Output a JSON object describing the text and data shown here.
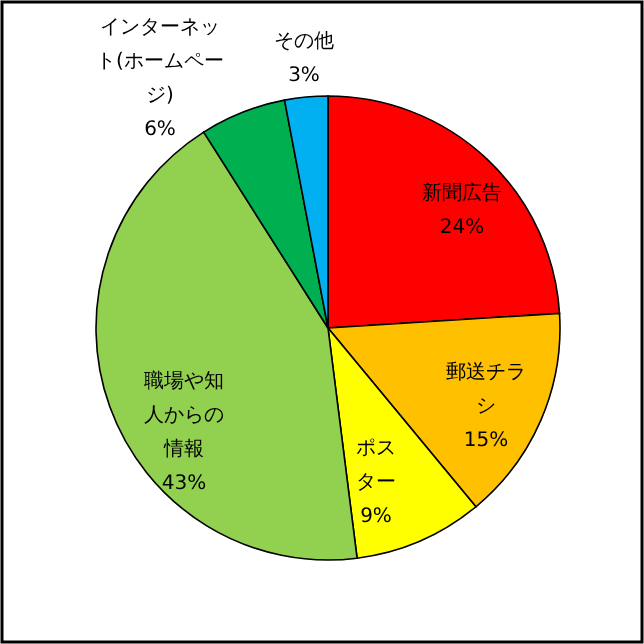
{
  "chart_data": {
    "type": "pie",
    "categories": [
      "新聞広告",
      "郵送チラシ",
      "ポスター",
      "職場や知人からの情報",
      "インターネット(ホームページ)",
      "その他"
    ],
    "values": [
      24,
      15,
      9,
      43,
      6,
      3
    ],
    "value_labels": [
      "24%",
      "15%",
      "9%",
      "43%",
      "6%",
      "3%"
    ],
    "colors": [
      "#ff0000",
      "#ffc000",
      "#ffff00",
      "#92d050",
      "#00b050",
      "#00b0f0"
    ]
  }
}
